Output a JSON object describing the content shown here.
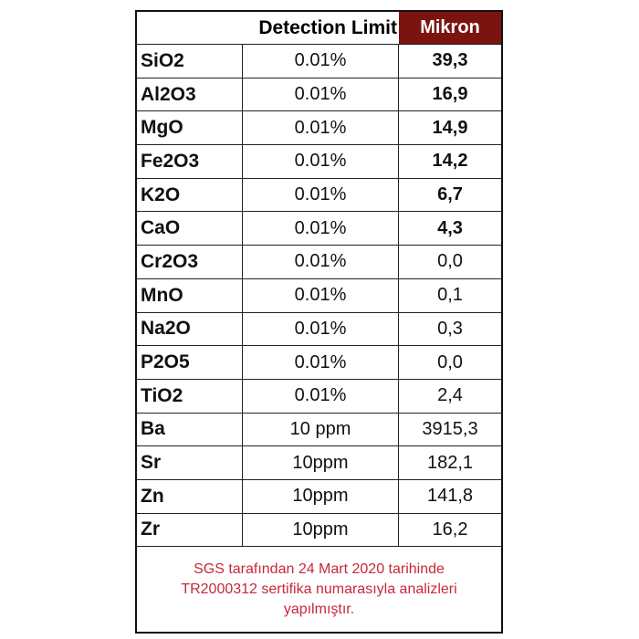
{
  "header": {
    "detection_limit": "Detection Limit",
    "sample": "Mikron"
  },
  "colors": {
    "header_accent": "#7b1410",
    "note_text": "#c8283a"
  },
  "rows": [
    {
      "element": "SiO2",
      "limit": "0.01%",
      "value": "39,3",
      "bold": true
    },
    {
      "element": "Al2O3",
      "limit": "0.01%",
      "value": "16,9",
      "bold": true
    },
    {
      "element": "MgO",
      "limit": "0.01%",
      "value": "14,9",
      "bold": true
    },
    {
      "element": "Fe2O3",
      "limit": "0.01%",
      "value": "14,2",
      "bold": true
    },
    {
      "element": "K2O",
      "limit": "0.01%",
      "value": "6,7",
      "bold": true
    },
    {
      "element": "CaO",
      "limit": "0.01%",
      "value": "4,3",
      "bold": true
    },
    {
      "element": "Cr2O3",
      "limit": "0.01%",
      "value": "0,0",
      "bold": false
    },
    {
      "element": "MnO",
      "limit": "0.01%",
      "value": "0,1",
      "bold": false
    },
    {
      "element": "Na2O",
      "limit": "0.01%",
      "value": "0,3",
      "bold": false
    },
    {
      "element": "P2O5",
      "limit": "0.01%",
      "value": "0,0",
      "bold": false
    },
    {
      "element": "TiO2",
      "limit": "0.01%",
      "value": "2,4",
      "bold": false
    },
    {
      "element": "Ba",
      "limit": "10 ppm",
      "value": "3915,3",
      "bold": false
    },
    {
      "element": "Sr",
      "limit": "10ppm",
      "value": "182,1",
      "bold": false
    },
    {
      "element": "Zn",
      "limit": "10ppm",
      "value": "141,8",
      "bold": false
    },
    {
      "element": "Zr",
      "limit": "10ppm",
      "value": "16,2",
      "bold": false
    }
  ],
  "note": "SGS tarafından 24 Mart 2020 tarihinde TR2000312 sertifika numarasıyla analizleri yapılmıştır."
}
